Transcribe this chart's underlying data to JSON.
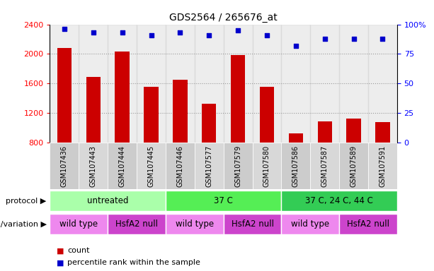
{
  "title": "GDS2564 / 265676_at",
  "samples": [
    "GSM107436",
    "GSM107443",
    "GSM107444",
    "GSM107445",
    "GSM107446",
    "GSM107577",
    "GSM107579",
    "GSM107580",
    "GSM107586",
    "GSM107587",
    "GSM107589",
    "GSM107591"
  ],
  "counts": [
    2080,
    1690,
    2030,
    1560,
    1650,
    1330,
    1990,
    1560,
    930,
    1090,
    1130,
    1080
  ],
  "percentiles": [
    96,
    93,
    93,
    91,
    93,
    91,
    95,
    91,
    82,
    88,
    88,
    88
  ],
  "ymin": 800,
  "ymax": 2400,
  "yticks": [
    800,
    1200,
    1600,
    2000,
    2400
  ],
  "right_yticks": [
    0,
    25,
    50,
    75,
    100
  ],
  "bar_color": "#cc0000",
  "dot_color": "#0000cc",
  "bar_width": 0.5,
  "protocol_groups": [
    {
      "label": "untreated",
      "start": 0,
      "end": 3,
      "color": "#aaffaa"
    },
    {
      "label": "37 C",
      "start": 4,
      "end": 7,
      "color": "#55ee55"
    },
    {
      "label": "37 C, 24 C, 44 C",
      "start": 8,
      "end": 11,
      "color": "#33cc55"
    }
  ],
  "genotype_groups": [
    {
      "label": "wild type",
      "start": 0,
      "end": 1,
      "color": "#ee88ee"
    },
    {
      "label": "HsfA2 null",
      "start": 2,
      "end": 3,
      "color": "#cc44cc"
    },
    {
      "label": "wild type",
      "start": 4,
      "end": 5,
      "color": "#ee88ee"
    },
    {
      "label": "HsfA2 null",
      "start": 6,
      "end": 7,
      "color": "#cc44cc"
    },
    {
      "label": "wild type",
      "start": 8,
      "end": 9,
      "color": "#ee88ee"
    },
    {
      "label": "HsfA2 null",
      "start": 10,
      "end": 11,
      "color": "#cc44cc"
    }
  ],
  "protocol_label": "protocol",
  "genotype_label": "genotype/variation",
  "legend_count_label": "count",
  "legend_percentile_label": "percentile rank within the sample",
  "bg_color": "#ffffff",
  "grid_color": "#888888",
  "sample_bg_color": "#cccccc",
  "title_fontsize": 10,
  "axis_label_fontsize": 8,
  "tick_fontsize": 8,
  "sample_fontsize": 7,
  "annotation_fontsize": 8
}
